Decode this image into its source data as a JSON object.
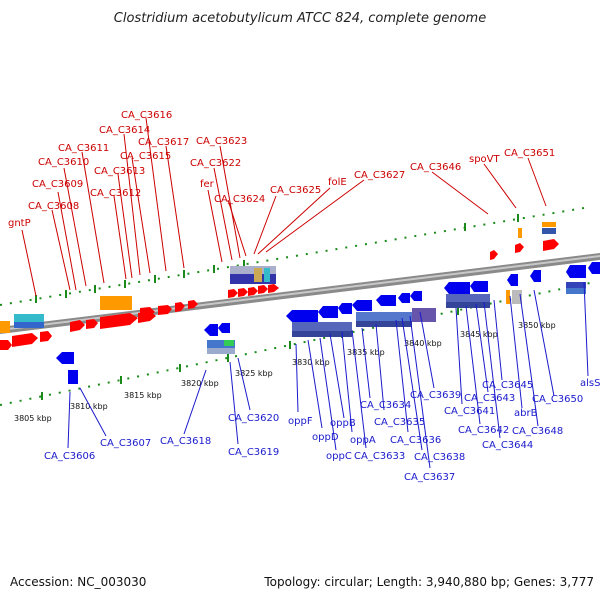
{
  "title": "Clostridium acetobutylicum ATCC 824, complete genome",
  "footer": {
    "accession": "Accession: NC_003030",
    "summary": "Topology: circular; Length: 3,940,880 bp; Genes: 3,777"
  },
  "colors": {
    "forward_gene": "#ff0000",
    "reverse_gene": "#0000ee",
    "forward_label": "#cc0000",
    "reverse_label": "#1a1acc",
    "backbone": "#8a8a8a",
    "tick": "#1a8a1a"
  },
  "scale_labels": [
    "3805 kbp",
    "3810 kbp",
    "3815 kbp",
    "3820 kbp",
    "3825 kbp",
    "3830 kbp",
    "3835 kbp",
    "3840 kbp",
    "3845 kbp",
    "3850 kbp"
  ],
  "forward_genes": [
    "gntP",
    "CA_C3608",
    "CA_C3609",
    "CA_C3610",
    "CA_C3611",
    "CA_C3612",
    "CA_C3613",
    "CA_C3614",
    "CA_C3615",
    "CA_C3616",
    "CA_C3617",
    "fer",
    "CA_C3622",
    "CA_C3623",
    "CA_C3624",
    "CA_C3625",
    "folE",
    "CA_C3627",
    "CA_C3646",
    "spoVT",
    "CA_C3651"
  ],
  "reverse_genes": [
    "CA_C3606",
    "CA_C3607",
    "CA_C3618",
    "CA_C3619",
    "CA_C3620",
    "oppF",
    "oppD",
    "oppB",
    "oppC",
    "oppA",
    "CA_C3633",
    "CA_C3634",
    "CA_C3635",
    "CA_C3636",
    "CA_C3637",
    "CA_C3638",
    "CA_C3639",
    "CA_C3641",
    "CA_C3642",
    "CA_C3643",
    "CA_C3644",
    "CA_C3645",
    "abrB",
    "CA_C3648",
    "CA_C3650",
    "alsS"
  ]
}
